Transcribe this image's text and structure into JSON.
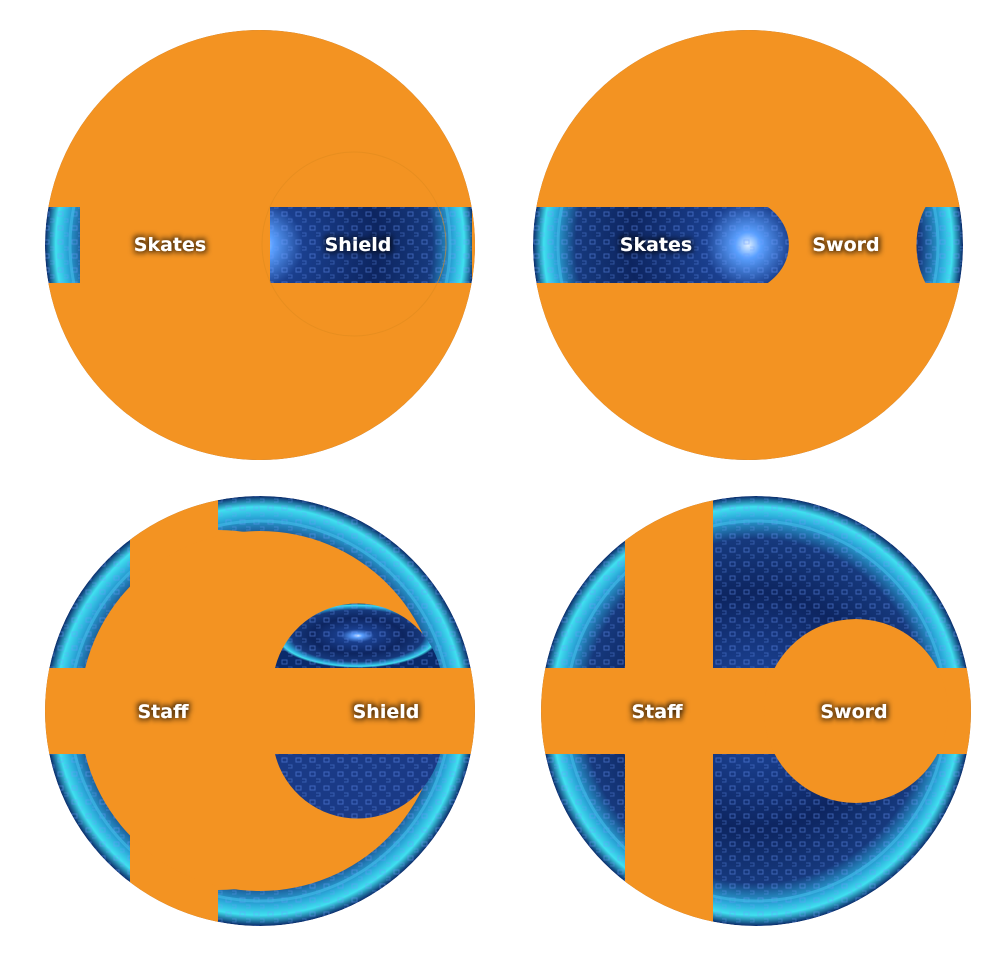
{
  "colors": {
    "orange": "#F39322",
    "portal_dark": "#0b1f54",
    "portal_mid": "#1d4fa0",
    "portal_glow": "#36d6e8",
    "label_text": "#ffffff",
    "label_shadow": "#000000"
  },
  "panels": [
    {
      "id": "top-left",
      "labels": {
        "left": "Skates",
        "right": "Shield"
      }
    },
    {
      "id": "top-right",
      "labels": {
        "left": "Skates",
        "right": "Sword"
      }
    },
    {
      "id": "bottom-left",
      "labels": {
        "left": "Staff",
        "right": "Shield"
      }
    },
    {
      "id": "bottom-right",
      "labels": {
        "left": "Staff",
        "right": "Sword"
      }
    }
  ]
}
